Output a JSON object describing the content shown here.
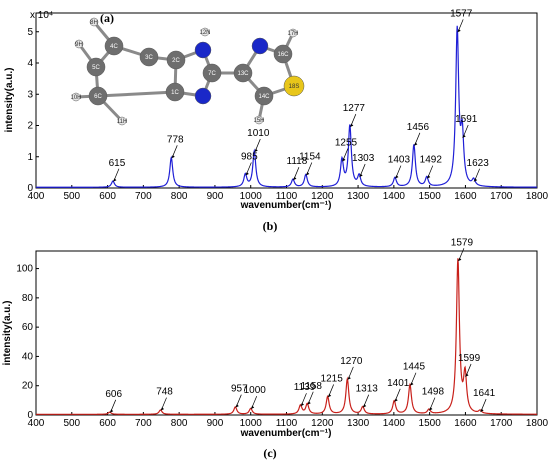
{
  "chart_data": [
    {
      "type": "line",
      "panel_label": "(a)",
      "caption": "(b)",
      "xlabel": "wavenumber(cm⁻¹)",
      "ylabel": "intensity(a.u.)",
      "y_multiplier": "x 10⁴",
      "xlim": [
        400,
        1800
      ],
      "ylim": [
        0,
        5.6
      ],
      "xticks": [
        400,
        500,
        600,
        700,
        800,
        900,
        1000,
        1100,
        1200,
        1300,
        1400,
        1500,
        1600,
        1700,
        1800
      ],
      "yticks": [
        0,
        1,
        2,
        3,
        4,
        5
      ],
      "grid": false,
      "color": "#1f1fd6",
      "peaks": [
        {
          "x": 615,
          "y": 0.2,
          "label": "615"
        },
        {
          "x": 778,
          "y": 0.95,
          "label": "778"
        },
        {
          "x": 985,
          "y": 0.4,
          "label": "985"
        },
        {
          "x": 1010,
          "y": 1.15,
          "label": "1010"
        },
        {
          "x": 1118,
          "y": 0.25,
          "label": "1118"
        },
        {
          "x": 1154,
          "y": 0.4,
          "label": "1154"
        },
        {
          "x": 1255,
          "y": 0.85,
          "label": "1255"
        },
        {
          "x": 1277,
          "y": 1.95,
          "label": "1277"
        },
        {
          "x": 1303,
          "y": 0.35,
          "label": "1303"
        },
        {
          "x": 1403,
          "y": 0.3,
          "label": "1403"
        },
        {
          "x": 1456,
          "y": 1.35,
          "label": "1456"
        },
        {
          "x": 1492,
          "y": 0.3,
          "label": "1492"
        },
        {
          "x": 1577,
          "y": 4.98,
          "label": "1577"
        },
        {
          "x": 1591,
          "y": 1.6,
          "label": "1591"
        },
        {
          "x": 1623,
          "y": 0.2,
          "label": "1623"
        }
      ],
      "molecule_atom_labels": [
        "8H",
        "12N",
        "9H",
        "4C",
        "2C",
        "7C",
        "13C",
        "16C",
        "17H",
        "5C",
        "3C",
        "18S",
        "10H",
        "6C",
        "1C",
        "14C",
        "11H",
        "15H"
      ]
    },
    {
      "type": "line",
      "caption": "(c)",
      "xlabel": "wavenumber(cm⁻¹)",
      "ylabel": "intensity(a.u.)",
      "xlim": [
        400,
        1800
      ],
      "ylim": [
        0,
        112
      ],
      "xticks": [
        400,
        500,
        600,
        700,
        800,
        900,
        1000,
        1100,
        1200,
        1300,
        1400,
        1500,
        1600,
        1700,
        1800
      ],
      "yticks": [
        0,
        20,
        40,
        60,
        80,
        100
      ],
      "grid": false,
      "color": "#c8201a",
      "peaks": [
        {
          "x": 606,
          "y": 1.5,
          "label": "606"
        },
        {
          "x": 748,
          "y": 3,
          "label": "748"
        },
        {
          "x": 957,
          "y": 5,
          "label": "957"
        },
        {
          "x": 1000,
          "y": 4,
          "label": "1000"
        },
        {
          "x": 1139,
          "y": 6,
          "label": "1139"
        },
        {
          "x": 1158,
          "y": 7,
          "label": "1158"
        },
        {
          "x": 1215,
          "y": 12,
          "label": "1215"
        },
        {
          "x": 1270,
          "y": 24,
          "label": "1270"
        },
        {
          "x": 1313,
          "y": 5,
          "label": "1313"
        },
        {
          "x": 1401,
          "y": 9,
          "label": "1401"
        },
        {
          "x": 1445,
          "y": 20,
          "label": "1445"
        },
        {
          "x": 1498,
          "y": 3,
          "label": "1498"
        },
        {
          "x": 1579,
          "y": 105,
          "label": "1579"
        },
        {
          "x": 1599,
          "y": 26,
          "label": "1599"
        },
        {
          "x": 1641,
          "y": 2,
          "label": "1641"
        }
      ]
    }
  ]
}
